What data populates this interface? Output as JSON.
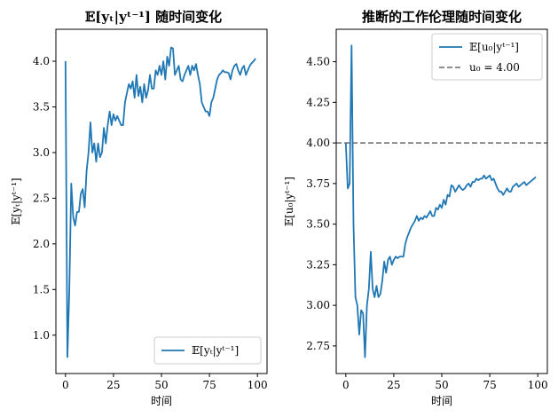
{
  "chart_data": [
    {
      "type": "line",
      "title": "𝔼[yₜ|yᵗ⁻¹] 随时间变化",
      "xlabel": "时间",
      "ylabel": "𝔼[yₜ|yᵗ⁻¹]",
      "xlim": [
        -5,
        105
      ],
      "ylim": [
        0.58,
        4.35
      ],
      "xticks": [
        0,
        25,
        50,
        75,
        100
      ],
      "xtick_labels": [
        "0",
        "25",
        "50",
        "75",
        "100"
      ],
      "yticks": [
        1.0,
        1.5,
        2.0,
        2.5,
        3.0,
        3.5,
        4.0
      ],
      "ytick_labels": [
        "1.0",
        "1.5",
        "2.0",
        "2.5",
        "3.0",
        "3.5",
        "4.0"
      ],
      "grid": false,
      "legend_position": "lower-right",
      "series": [
        {
          "name": "𝔼[yₜ|yᵗ⁻¹]",
          "color": "#1f77b4",
          "x": [
            0,
            1,
            2,
            3,
            4,
            5,
            6,
            7,
            8,
            9,
            10,
            11,
            12,
            13,
            14,
            15,
            16,
            17,
            18,
            19,
            20,
            21,
            22,
            23,
            24,
            25,
            26,
            27,
            28,
            29,
            30,
            31,
            32,
            33,
            34,
            35,
            36,
            37,
            38,
            39,
            40,
            41,
            42,
            43,
            44,
            45,
            46,
            47,
            48,
            49,
            50,
            51,
            52,
            53,
            54,
            55,
            56,
            57,
            58,
            59,
            60,
            61,
            62,
            63,
            64,
            65,
            66,
            67,
            68,
            69,
            70,
            71,
            72,
            73,
            74,
            75,
            76,
            77,
            78,
            79,
            80,
            81,
            82,
            83,
            84,
            85,
            86,
            87,
            88,
            89,
            90,
            91,
            92,
            93,
            94,
            95,
            96,
            97,
            98,
            99
          ],
          "y": [
            4.0,
            0.76,
            1.5,
            2.66,
            2.3,
            2.2,
            2.35,
            2.35,
            2.55,
            2.6,
            2.4,
            2.8,
            3.0,
            3.33,
            3.0,
            3.1,
            2.9,
            3.1,
            2.95,
            3.0,
            3.27,
            3.1,
            3.3,
            3.45,
            3.3,
            3.42,
            3.35,
            3.4,
            3.35,
            3.3,
            3.3,
            3.55,
            3.65,
            3.75,
            3.7,
            3.78,
            3.6,
            3.85,
            3.62,
            3.72,
            3.55,
            3.75,
            3.6,
            3.68,
            3.85,
            3.7,
            3.7,
            3.9,
            3.85,
            3.95,
            3.85,
            4.0,
            3.8,
            4.05,
            3.95,
            4.15,
            4.14,
            3.85,
            3.9,
            3.95,
            3.8,
            3.78,
            3.85,
            3.9,
            3.95,
            3.85,
            3.95,
            3.9,
            3.97,
            3.85,
            3.75,
            3.55,
            3.5,
            3.45,
            3.45,
            3.4,
            3.55,
            3.6,
            3.7,
            3.8,
            3.85,
            3.87,
            3.9,
            3.88,
            3.88,
            3.87,
            3.8,
            3.9,
            3.95,
            3.97,
            3.9,
            3.85,
            3.92,
            3.95,
            3.85,
            3.9,
            3.95,
            3.98,
            4.0,
            4.03
          ]
        }
      ]
    },
    {
      "type": "line",
      "title": "推断的工作伦理随时间变化",
      "xlabel": "时间",
      "ylabel": "𝔼[u₀|yᵗ⁻¹]",
      "xlim": [
        -5,
        105
      ],
      "ylim": [
        2.58,
        4.7
      ],
      "xticks": [
        0,
        25,
        50,
        75,
        100
      ],
      "xtick_labels": [
        "0",
        "25",
        "50",
        "75",
        "100"
      ],
      "yticks": [
        2.75,
        3.0,
        3.25,
        3.5,
        3.75,
        4.0,
        4.25,
        4.5
      ],
      "ytick_labels": [
        "2.75",
        "3.00",
        "3.25",
        "3.50",
        "3.75",
        "4.00",
        "4.25",
        "4.50"
      ],
      "grid": false,
      "legend_position": "upper-right",
      "reference_line": {
        "label": "u₀ = 4.00",
        "y": 4.0,
        "color": "#7f7f7f",
        "style": "dashed"
      },
      "series": [
        {
          "name": "𝔼[u₀|yᵗ⁻¹]",
          "color": "#1f77b4",
          "x": [
            0,
            1,
            2,
            3,
            4,
            5,
            6,
            7,
            8,
            9,
            10,
            11,
            12,
            13,
            14,
            15,
            16,
            17,
            18,
            19,
            20,
            21,
            22,
            23,
            24,
            25,
            26,
            27,
            28,
            29,
            30,
            31,
            32,
            33,
            34,
            35,
            36,
            37,
            38,
            39,
            40,
            41,
            42,
            43,
            44,
            45,
            46,
            47,
            48,
            49,
            50,
            51,
            52,
            53,
            54,
            55,
            56,
            57,
            58,
            59,
            60,
            61,
            62,
            63,
            64,
            65,
            66,
            67,
            68,
            69,
            70,
            71,
            72,
            73,
            74,
            75,
            76,
            77,
            78,
            79,
            80,
            81,
            82,
            83,
            84,
            85,
            86,
            87,
            88,
            89,
            90,
            91,
            92,
            93,
            94,
            95,
            96,
            97,
            98,
            99
          ],
          "y": [
            4.0,
            3.72,
            3.75,
            4.6,
            3.5,
            3.05,
            3.0,
            2.82,
            2.97,
            2.95,
            2.68,
            3.0,
            3.1,
            3.33,
            3.1,
            3.05,
            3.12,
            3.05,
            3.07,
            3.15,
            3.27,
            3.2,
            3.28,
            3.3,
            3.25,
            3.28,
            3.3,
            3.29,
            3.3,
            3.3,
            3.3,
            3.38,
            3.42,
            3.45,
            3.48,
            3.5,
            3.52,
            3.55,
            3.52,
            3.54,
            3.53,
            3.55,
            3.54,
            3.56,
            3.58,
            3.55,
            3.55,
            3.6,
            3.59,
            3.62,
            3.6,
            3.65,
            3.62,
            3.68,
            3.67,
            3.74,
            3.73,
            3.7,
            3.72,
            3.74,
            3.72,
            3.71,
            3.72,
            3.74,
            3.75,
            3.73,
            3.76,
            3.76,
            3.78,
            3.77,
            3.78,
            3.78,
            3.8,
            3.78,
            3.79,
            3.8,
            3.77,
            3.78,
            3.75,
            3.72,
            3.7,
            3.7,
            3.68,
            3.7,
            3.72,
            3.7,
            3.7,
            3.73,
            3.74,
            3.75,
            3.73,
            3.74,
            3.75,
            3.76,
            3.74,
            3.75,
            3.76,
            3.77,
            3.78,
            3.79
          ]
        }
      ]
    }
  ]
}
